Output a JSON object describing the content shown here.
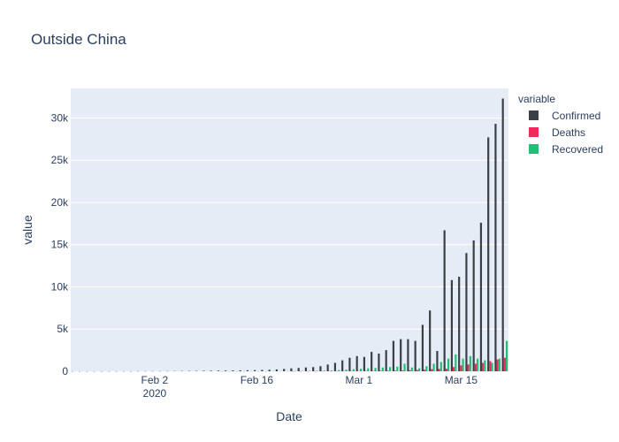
{
  "chart_data": {
    "type": "bar",
    "title": "Outside China",
    "xlabel": "Date",
    "ylabel": "value",
    "legend_title": "variable",
    "legend_position": "top-right",
    "barmode": "group",
    "grid": true,
    "ylim": [
      0,
      33500
    ],
    "yticks": [
      0,
      5000,
      10000,
      15000,
      20000,
      25000,
      30000
    ],
    "ytick_labels": [
      "0",
      "5k",
      "10k",
      "15k",
      "20k",
      "25k",
      "30k"
    ],
    "xticks": [
      {
        "date": "2020-02-02",
        "label": "Feb 2",
        "sublabel": "2020"
      },
      {
        "date": "2020-02-16",
        "label": "Feb 16",
        "sublabel": ""
      },
      {
        "date": "2020-03-01",
        "label": "Mar 1",
        "sublabel": ""
      },
      {
        "date": "2020-03-15",
        "label": "Mar 15",
        "sublabel": ""
      }
    ],
    "x": [
      "2020-01-22",
      "2020-01-23",
      "2020-01-24",
      "2020-01-25",
      "2020-01-26",
      "2020-01-27",
      "2020-01-28",
      "2020-01-29",
      "2020-01-30",
      "2020-01-31",
      "2020-02-01",
      "2020-02-02",
      "2020-02-03",
      "2020-02-04",
      "2020-02-05",
      "2020-02-06",
      "2020-02-07",
      "2020-02-08",
      "2020-02-09",
      "2020-02-10",
      "2020-02-11",
      "2020-02-12",
      "2020-02-13",
      "2020-02-14",
      "2020-02-15",
      "2020-02-16",
      "2020-02-17",
      "2020-02-18",
      "2020-02-19",
      "2020-02-20",
      "2020-02-21",
      "2020-02-22",
      "2020-02-23",
      "2020-02-24",
      "2020-02-25",
      "2020-02-26",
      "2020-02-27",
      "2020-02-28",
      "2020-02-29",
      "2020-03-01",
      "2020-03-02",
      "2020-03-03",
      "2020-03-04",
      "2020-03-05",
      "2020-03-06",
      "2020-03-07",
      "2020-03-08",
      "2020-03-09",
      "2020-03-10",
      "2020-03-11",
      "2020-03-12",
      "2020-03-13",
      "2020-03-14",
      "2020-03-15",
      "2020-03-16",
      "2020-03-17",
      "2020-03-18",
      "2020-03-19",
      "2020-03-20",
      "2020-03-21"
    ],
    "series": [
      {
        "name": "Confirmed",
        "color": "#3b4048",
        "values": [
          1,
          1,
          1,
          2,
          2,
          3,
          4,
          5,
          7,
          9,
          12,
          15,
          18,
          22,
          28,
          35,
          42,
          50,
          60,
          70,
          80,
          90,
          100,
          110,
          120,
          140,
          160,
          180,
          220,
          280,
          350,
          400,
          450,
          500,
          600,
          800,
          1000,
          1300,
          1600,
          1800,
          1700,
          2300,
          2100,
          2500,
          3600,
          3800,
          3800,
          3600,
          5500,
          7200,
          2400,
          16700,
          10800,
          11200,
          14000,
          15500,
          17600,
          27700,
          29300,
          32300
        ]
      },
      {
        "name": "Deaths",
        "color": "#ef2b5e",
        "values": [
          0,
          0,
          0,
          0,
          0,
          0,
          0,
          0,
          0,
          0,
          0,
          0,
          0,
          0,
          0,
          0,
          0,
          0,
          0,
          0,
          0,
          0,
          0,
          0,
          0,
          0,
          0,
          0,
          0,
          0,
          1,
          2,
          3,
          5,
          8,
          10,
          12,
          15,
          20,
          25,
          30,
          40,
          50,
          60,
          70,
          90,
          120,
          150,
          200,
          250,
          280,
          300,
          500,
          700,
          800,
          900,
          1000,
          1200,
          1400,
          1600
        ]
      },
      {
        "name": "Recovered",
        "color": "#1fbf76",
        "values": [
          0,
          0,
          0,
          0,
          0,
          0,
          0,
          0,
          0,
          0,
          0,
          0,
          0,
          0,
          0,
          0,
          0,
          0,
          0,
          0,
          2,
          3,
          4,
          5,
          6,
          8,
          10,
          12,
          15,
          20,
          25,
          35,
          45,
          55,
          80,
          100,
          150,
          200,
          250,
          300,
          350,
          400,
          450,
          500,
          550,
          900,
          450,
          350,
          600,
          900,
          1100,
          1500,
          2000,
          1500,
          1800,
          1500,
          1300,
          1000,
          1500,
          3600
        ]
      }
    ]
  }
}
